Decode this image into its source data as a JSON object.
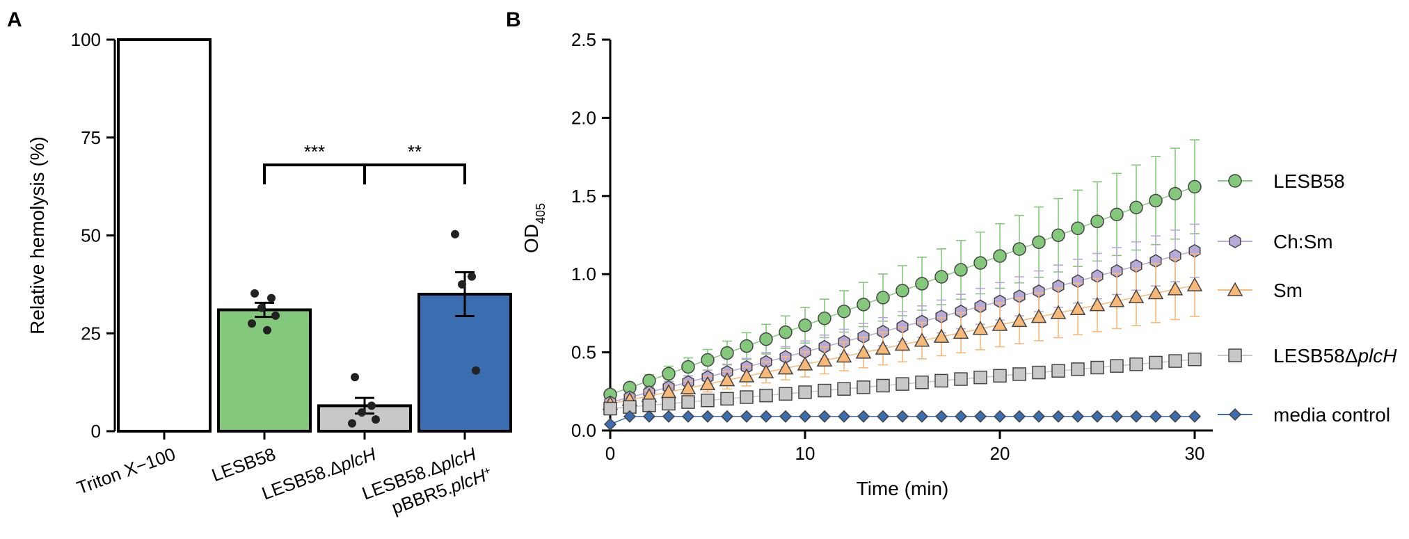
{
  "chart_data": [
    {
      "panel": "A",
      "type": "bar",
      "ylabel": "Relative hemolysis (%)",
      "ylim": [
        0,
        100
      ],
      "yticks": [
        0,
        25,
        50,
        75,
        100
      ],
      "categories": [
        {
          "label": "Triton X−100",
          "italic_part": "",
          "sup": "",
          "line2": ""
        },
        {
          "label": "LESB58",
          "italic_part": "",
          "sup": "",
          "line2": ""
        },
        {
          "label": "LESB58.Δ",
          "italic_part": "plcH",
          "sup": "",
          "line2": ""
        },
        {
          "label": "LESB58.Δ",
          "italic_part": "plcH",
          "sup": "",
          "line2": "pBBR5.",
          "line2_italic": "plcH",
          "line2_sup": "+"
        }
      ],
      "values": [
        100,
        31,
        6.5,
        35
      ],
      "sem": [
        0,
        1.8,
        2.0,
        5.6
      ],
      "colors": [
        "#ffffff",
        "#84c97b",
        "#c8c8c8",
        "#3a6eb0"
      ],
      "points": [
        [],
        [
          35.2,
          34.0,
          31.5,
          29.5,
          27.5,
          25.8
        ],
        [
          13.8,
          6.5,
          4.8,
          3.0,
          2.0
        ],
        [
          50.3,
          39.5,
          37.5,
          15.5
        ]
      ],
      "significance": [
        {
          "from": 1,
          "to": 2,
          "label": "***",
          "y": 68
        },
        {
          "from": 2,
          "to": 3,
          "label": "**",
          "y": 68
        }
      ]
    },
    {
      "panel": "B",
      "type": "line",
      "xlabel": "Time (min)",
      "ylabel_main": "OD",
      "ylabel_sub": "405",
      "xlim": [
        0,
        30
      ],
      "ylim": [
        0,
        2.5
      ],
      "xticks": [
        0,
        10,
        20,
        30
      ],
      "yticks": [
        0.0,
        0.5,
        1.0,
        1.5,
        2.0,
        2.5
      ],
      "series": [
        {
          "name": "LESB58",
          "italic_part": "",
          "marker": "circle",
          "color": "#84c97b",
          "err": 0.28,
          "y0": 0.23,
          "slope": 0.0443
        },
        {
          "name": "Ch:Sm",
          "italic_part": "",
          "marker": "hexagon",
          "color": "#b8aad8",
          "err": 0.15,
          "y0": 0.18,
          "slope": 0.0323
        },
        {
          "name": "Sm",
          "italic_part": "",
          "marker": "triangle",
          "color": "#f7b878",
          "err": 0.18,
          "y0": 0.17,
          "slope": 0.0253
        },
        {
          "name": "LESB58Δ",
          "italic_part": "plcH",
          "marker": "square",
          "color": "#c8c8c8",
          "err": 0.0,
          "y0": 0.14,
          "slope": 0.0105
        },
        {
          "name": "media control",
          "italic_part": "",
          "marker": "diamond",
          "color": "#3a6eb0",
          "err": 0.0,
          "y0": 0.09,
          "slope": 0.0
        }
      ]
    }
  ],
  "panel_labels": {
    "a": "A",
    "b": "B"
  }
}
